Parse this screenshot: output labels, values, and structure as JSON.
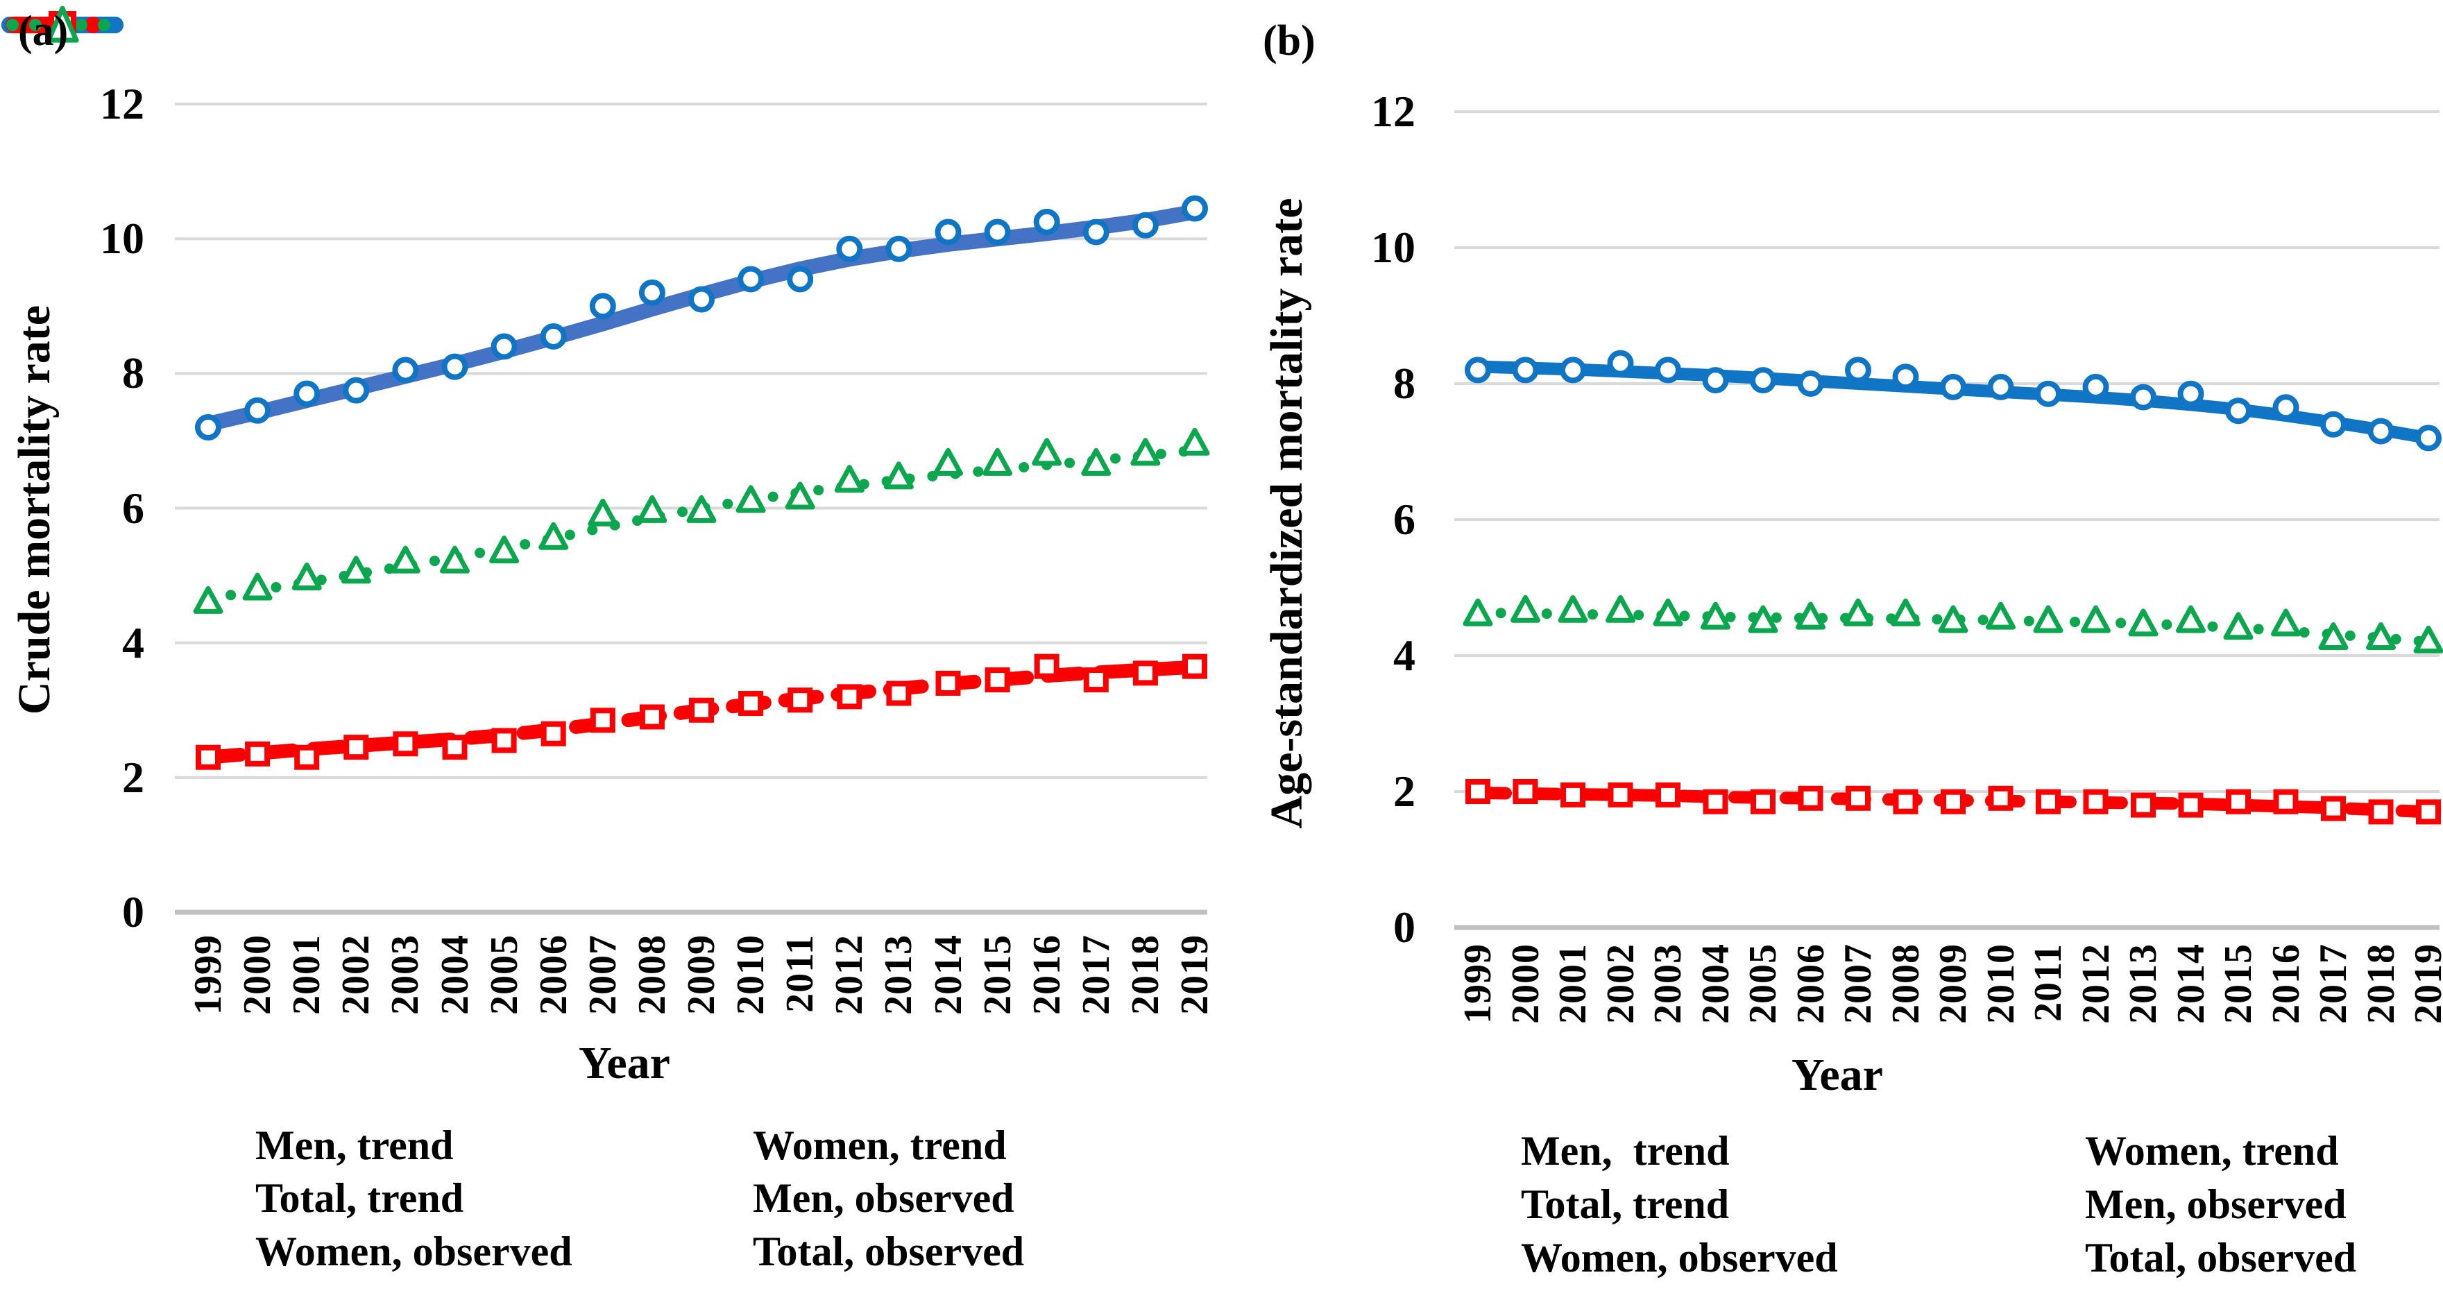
{
  "figure_type": "two-panel line chart, observed points with fitted trend lines",
  "colors": {
    "blue_muted_trend_a": "#4472c4",
    "blue_bright": "#1175c5",
    "red": "#fa0000",
    "green": "#0ca64f",
    "gridline": "#d9d9d9",
    "axis_line": "#c0c0c0",
    "text": "#000000",
    "background": "#ffffff"
  },
  "chart_data": [
    {
      "type": "line",
      "panel_label": "(a)",
      "ylabel": "Crude mortality rate",
      "xlabel": "Year",
      "ylim": [
        0,
        12
      ],
      "yticks": [
        0,
        2,
        4,
        6,
        8,
        10,
        12
      ],
      "grid": "horizontal-only",
      "x": [
        "1999",
        "2000",
        "2001",
        "2002",
        "2003",
        "2004",
        "2005",
        "2006",
        "2007",
        "2008",
        "2009",
        "2010",
        "2011",
        "2012",
        "2013",
        "2014",
        "2015",
        "2016",
        "2017",
        "2018",
        "2019"
      ],
      "series": [
        {
          "name": "Men, trend",
          "style": "solid",
          "color": "#4472c4",
          "values": [
            7.25,
            7.42,
            7.6,
            7.78,
            7.96,
            8.14,
            8.33,
            8.53,
            8.74,
            8.96,
            9.17,
            9.37,
            9.55,
            9.7,
            9.82,
            9.92,
            10.0,
            10.08,
            10.17,
            10.27,
            10.4
          ]
        },
        {
          "name": "Women, trend",
          "style": "dashed",
          "color": "#fa0000",
          "values": [
            2.3,
            2.36,
            2.42,
            2.47,
            2.52,
            2.57,
            2.63,
            2.71,
            2.8,
            2.9,
            3.0,
            3.09,
            3.17,
            3.25,
            3.32,
            3.39,
            3.45,
            3.51,
            3.56,
            3.6,
            3.64
          ]
        },
        {
          "name": "Total, trend",
          "style": "dotted",
          "color": "#0ca64f",
          "values": [
            4.65,
            4.78,
            4.9,
            5.02,
            5.14,
            5.27,
            5.4,
            5.55,
            5.71,
            5.86,
            6.0,
            6.12,
            6.23,
            6.33,
            6.42,
            6.5,
            6.57,
            6.64,
            6.71,
            6.78,
            6.86
          ]
        },
        {
          "name": "Men, observed",
          "style": "circle",
          "color": "#1175c5",
          "values": [
            7.2,
            7.45,
            7.7,
            7.75,
            8.05,
            8.1,
            8.4,
            8.55,
            9.0,
            9.2,
            9.1,
            9.4,
            9.4,
            9.85,
            9.85,
            10.1,
            10.1,
            10.25,
            10.1,
            10.2,
            10.45
          ]
        },
        {
          "name": "Women, observed",
          "style": "square",
          "color": "#fa0000",
          "values": [
            2.3,
            2.35,
            2.3,
            2.45,
            2.5,
            2.45,
            2.55,
            2.65,
            2.85,
            2.9,
            3.0,
            3.1,
            3.15,
            3.2,
            3.25,
            3.4,
            3.45,
            3.65,
            3.45,
            3.55,
            3.65
          ]
        },
        {
          "name": "Total, observed",
          "style": "triangle",
          "color": "#0ca64f",
          "values": [
            4.6,
            4.8,
            4.95,
            5.05,
            5.2,
            5.2,
            5.35,
            5.55,
            5.9,
            5.95,
            5.95,
            6.1,
            6.15,
            6.4,
            6.45,
            6.65,
            6.65,
            6.8,
            6.65,
            6.8,
            6.95
          ]
        }
      ],
      "legend": [
        {
          "swatch": "line",
          "label": "Men, trend"
        },
        {
          "swatch": "dash",
          "label": "Women, trend"
        },
        {
          "swatch": "dots",
          "label": "Total, trend"
        },
        {
          "swatch": "circle",
          "label": "Men, observed"
        },
        {
          "swatch": "square",
          "label": "Women, observed"
        },
        {
          "swatch": "triangle",
          "label": "Total, observed"
        }
      ],
      "legend_position": "below"
    },
    {
      "type": "line",
      "panel_label": "(b)",
      "ylabel": "Age-standardized mortality rate",
      "xlabel": "Year",
      "ylim": [
        0,
        12
      ],
      "yticks": [
        0,
        2,
        4,
        6,
        8,
        10,
        12
      ],
      "grid": "horizontal-only",
      "x": [
        "1999",
        "2000",
        "2001",
        "2002",
        "2003",
        "2004",
        "2005",
        "2006",
        "2007",
        "2008",
        "2009",
        "2010",
        "2011",
        "2012",
        "2013",
        "2014",
        "2015",
        "2016",
        "2017",
        "2018",
        "2019"
      ],
      "series": [
        {
          "name": "Men,  trend",
          "style": "solid",
          "color": "#1175c5",
          "values": [
            8.25,
            8.23,
            8.21,
            8.18,
            8.15,
            8.12,
            8.08,
            8.04,
            8.0,
            7.96,
            7.92,
            7.88,
            7.84,
            7.8,
            7.75,
            7.69,
            7.62,
            7.53,
            7.43,
            7.32,
            7.2
          ]
        },
        {
          "name": "Women, trend",
          "style": "dashed",
          "color": "#fa0000",
          "values": [
            1.98,
            1.97,
            1.96,
            1.95,
            1.94,
            1.92,
            1.91,
            1.9,
            1.89,
            1.88,
            1.87,
            1.86,
            1.85,
            1.84,
            1.83,
            1.82,
            1.8,
            1.78,
            1.76,
            1.73,
            1.7
          ]
        },
        {
          "name": "Total, trend",
          "style": "dotted",
          "color": "#0ca64f",
          "values": [
            4.63,
            4.62,
            4.61,
            4.6,
            4.59,
            4.57,
            4.56,
            4.55,
            4.55,
            4.54,
            4.53,
            4.52,
            4.5,
            4.49,
            4.47,
            4.44,
            4.41,
            4.36,
            4.31,
            4.26,
            4.2
          ]
        },
        {
          "name": "Men, observed",
          "style": "circle",
          "color": "#1175c5",
          "values": [
            8.2,
            8.2,
            8.2,
            8.3,
            8.2,
            8.05,
            8.05,
            8.0,
            8.2,
            8.1,
            7.95,
            7.95,
            7.85,
            7.95,
            7.8,
            7.85,
            7.6,
            7.65,
            7.4,
            7.3,
            7.2
          ]
        },
        {
          "name": "Women, observed",
          "style": "square",
          "color": "#fa0000",
          "values": [
            2.0,
            2.0,
            1.95,
            1.95,
            1.95,
            1.85,
            1.85,
            1.9,
            1.9,
            1.85,
            1.85,
            1.9,
            1.85,
            1.85,
            1.8,
            1.8,
            1.85,
            1.85,
            1.75,
            1.7,
            1.7
          ]
        },
        {
          "name": "Total, observed",
          "style": "triangle",
          "color": "#0ca64f",
          "values": [
            4.6,
            4.65,
            4.65,
            4.65,
            4.6,
            4.55,
            4.5,
            4.55,
            4.6,
            4.6,
            4.5,
            4.55,
            4.5,
            4.5,
            4.45,
            4.5,
            4.4,
            4.45,
            4.25,
            4.25,
            4.2
          ]
        }
      ],
      "legend": [
        {
          "swatch": "line",
          "label": "Men,  trend"
        },
        {
          "swatch": "dash",
          "label": "Women, trend"
        },
        {
          "swatch": "dots",
          "label": "Total, trend"
        },
        {
          "swatch": "circle",
          "label": "Men, observed"
        },
        {
          "swatch": "square",
          "label": "Women, observed"
        },
        {
          "swatch": "triangle",
          "label": "Total, observed"
        }
      ],
      "legend_position": "below"
    }
  ]
}
